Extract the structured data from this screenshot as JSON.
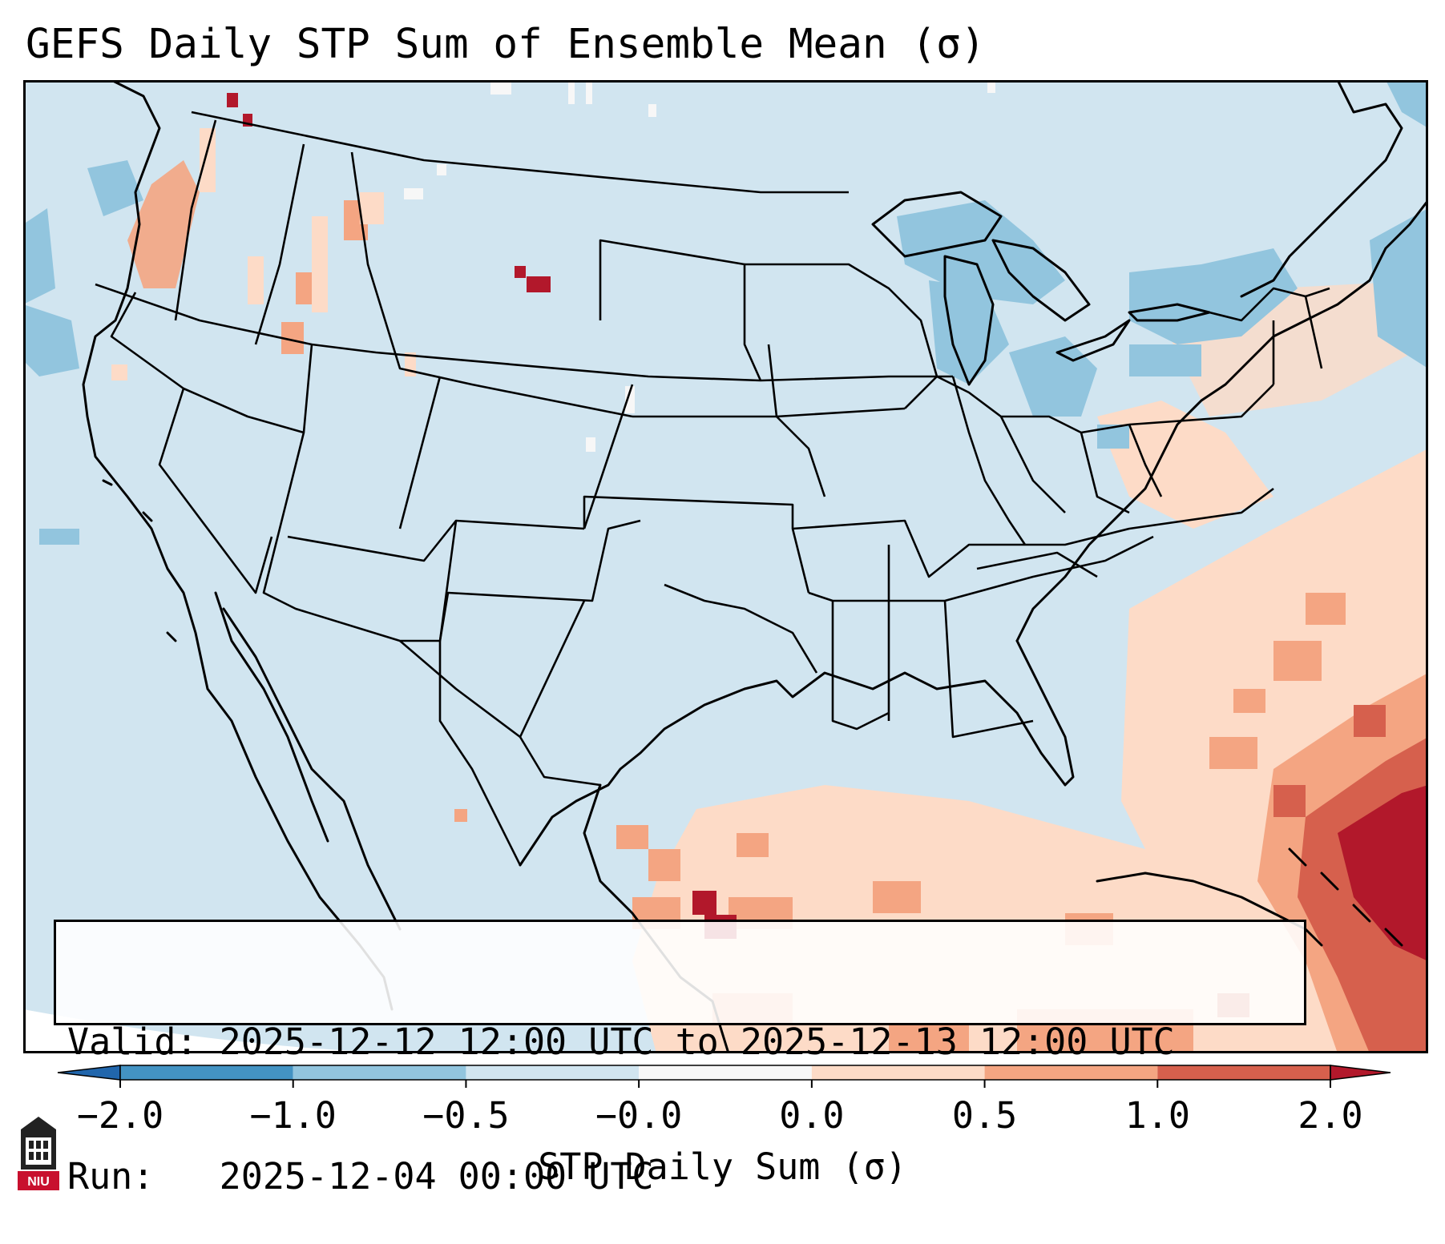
{
  "title": "GEFS Daily STP Sum of Ensemble Mean (σ)",
  "map": {
    "projection": "Lambert conformal CONUS",
    "background_value_color": "#d1e5f0",
    "ocean_void_color": "#ffffff",
    "boundary_color": "#000000",
    "anomaly_regions": [
      {
        "region": "Gulf of Mexico / Florida",
        "level": "0.0 to 1.0"
      },
      {
        "region": "Western Atlantic near Bahamas",
        "level": "1.0 to 2.0"
      },
      {
        "region": "South Texas coast",
        "level": "1.0 to 2.0"
      },
      {
        "region": "Great Lakes / New England",
        "level": "-0.5 to -1.0"
      },
      {
        "region": "Pacific Northwest coast",
        "level": "0.0 to 1.0"
      },
      {
        "region": "Central Montana",
        "level": "1.0 to 2.0"
      }
    ]
  },
  "info_box": {
    "valid_label": "Valid:",
    "valid_value": "2025-12-12 12:00 UTC to 2025-12-13 12:00 UTC",
    "run_label": "Run:  ",
    "run_value": "2025-12-04 00:00 UTC"
  },
  "colorbar": {
    "label": "STP Daily Sum (σ)",
    "ticks": [
      "−2.0",
      "−1.0",
      "−0.5",
      "−0.0",
      "0.0",
      "0.5",
      "1.0",
      "2.0"
    ],
    "colors": [
      "#4393c3",
      "#92c5de",
      "#d1e5f0",
      "#f7f7f7",
      "#fddbc7",
      "#f4a582",
      "#d6604d"
    ],
    "under_color": "#2166ac",
    "over_color": "#b2182b"
  },
  "logo": {
    "text": "NIU",
    "icon": "university-shield-icon",
    "color": "#c8102e"
  }
}
